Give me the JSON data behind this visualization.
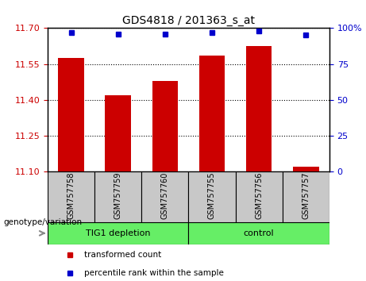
{
  "title": "GDS4818 / 201363_s_at",
  "samples": [
    "GSM757758",
    "GSM757759",
    "GSM757760",
    "GSM757755",
    "GSM757756",
    "GSM757757"
  ],
  "bar_values": [
    11.575,
    11.42,
    11.48,
    11.585,
    11.625,
    11.12
  ],
  "percentile_values": [
    97,
    96,
    96,
    97,
    98,
    95
  ],
  "bar_color": "#cc0000",
  "dot_color": "#0000cc",
  "ylim_left": [
    11.1,
    11.7
  ],
  "ylim_right": [
    0,
    100
  ],
  "yticks_left": [
    11.1,
    11.25,
    11.4,
    11.55,
    11.7
  ],
  "yticks_right": [
    0,
    25,
    50,
    75,
    100
  ],
  "groups": [
    {
      "label": "TIG1 depletion",
      "indices": [
        0,
        1,
        2
      ],
      "color": "#66ee66"
    },
    {
      "label": "control",
      "indices": [
        3,
        4,
        5
      ],
      "color": "#66ee66"
    }
  ],
  "xlabel_area": "genotype/variation",
  "legend_items": [
    {
      "label": "transformed count",
      "color": "#cc0000"
    },
    {
      "label": "percentile rank within the sample",
      "color": "#0000cc"
    }
  ],
  "bar_width": 0.55,
  "group_bg_color": "#c8c8c8",
  "left_tick_color": "#cc0000",
  "right_tick_color": "#0000cc",
  "grid_yticks": [
    11.25,
    11.4,
    11.55
  ]
}
